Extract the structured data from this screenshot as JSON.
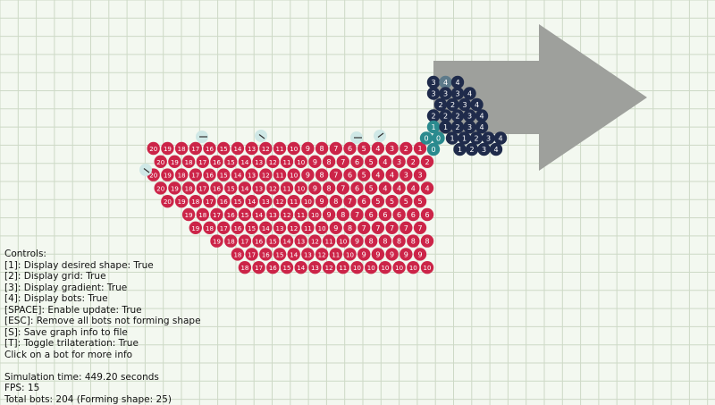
{
  "scene": {
    "colors": {
      "background": "#f3f8f0",
      "grid": "#cdd9c6",
      "shape": "#9ea09c",
      "bot_red": "#cc2448",
      "bot_navy": "#1f2b4b",
      "bot_teal": "#2a8a8e",
      "bot_slate": "#5d7a8a",
      "bot_pale": "#cfe8e6",
      "label": "#ffffff"
    },
    "shape_bots": [
      [
        {
          "n": "3",
          "c": "navy"
        },
        {
          "n": "4",
          "c": "slate"
        },
        {
          "n": "4",
          "c": "navy"
        }
      ],
      [
        {
          "n": "3",
          "c": "navy"
        },
        {
          "n": "3",
          "c": "navy"
        },
        {
          "n": "3",
          "c": "navy"
        },
        {
          "n": "4",
          "c": "navy"
        }
      ],
      [
        {
          "n": "2",
          "c": "navy"
        },
        {
          "n": "2",
          "c": "navy"
        },
        {
          "n": "3",
          "c": "navy"
        },
        {
          "n": "4",
          "c": "navy"
        }
      ],
      [
        {
          "n": "2",
          "c": "navy"
        },
        {
          "n": "2",
          "c": "navy"
        },
        {
          "n": "2",
          "c": "navy"
        },
        {
          "n": "3",
          "c": "navy"
        },
        {
          "n": "4",
          "c": "navy"
        }
      ],
      [
        {
          "n": "1",
          "c": "teal"
        },
        {
          "n": "1",
          "c": "navy"
        },
        {
          "n": "2",
          "c": "navy"
        },
        {
          "n": "3",
          "c": "navy"
        },
        {
          "n": "4",
          "c": "navy"
        }
      ],
      [
        {
          "n": "0",
          "c": "teal"
        },
        {
          "n": "0",
          "c": "teal"
        },
        {
          "n": "1",
          "c": "navy"
        },
        {
          "n": "1",
          "c": "navy"
        },
        {
          "n": "2",
          "c": "navy"
        },
        {
          "n": "3",
          "c": "navy"
        },
        {
          "n": "4",
          "c": "navy"
        }
      ],
      [
        {
          "n": "0",
          "c": "teal"
        },
        {
          "n": "1",
          "c": "navy"
        },
        {
          "n": "2",
          "c": "navy"
        },
        {
          "n": "3",
          "c": "navy"
        },
        {
          "n": "4",
          "c": "navy"
        }
      ]
    ],
    "swarm_rows": [
      [
        "20",
        "19",
        "18",
        "17",
        "16",
        "15",
        "14",
        "13",
        "12",
        "11",
        "10",
        "9",
        "8",
        "7",
        "6",
        "5",
        "4",
        "3",
        "2",
        "1"
      ],
      [
        "20",
        "19",
        "18",
        "17",
        "16",
        "15",
        "14",
        "13",
        "12",
        "11",
        "10",
        "9",
        "8",
        "7",
        "6",
        "5",
        "4",
        "3",
        "2",
        "2"
      ],
      [
        "20",
        "19",
        "18",
        "17",
        "16",
        "15",
        "14",
        "13",
        "12",
        "11",
        "10",
        "9",
        "8",
        "7",
        "6",
        "5",
        "4",
        "4",
        "3",
        "3"
      ],
      [
        "20",
        "19",
        "18",
        "17",
        "16",
        "15",
        "14",
        "13",
        "12",
        "11",
        "10",
        "9",
        "8",
        "7",
        "6",
        "5",
        "4",
        "4",
        "4",
        "4"
      ],
      [
        "20",
        "19",
        "18",
        "17",
        "16",
        "15",
        "14",
        "13",
        "12",
        "11",
        "10",
        "9",
        "8",
        "7",
        "6",
        "5",
        "5",
        "5",
        "5"
      ],
      [
        "19",
        "18",
        "17",
        "16",
        "15",
        "14",
        "13",
        "12",
        "11",
        "10",
        "9",
        "8",
        "7",
        "6",
        "6",
        "6",
        "6",
        "6"
      ],
      [
        "19",
        "18",
        "17",
        "16",
        "15",
        "14",
        "13",
        "12",
        "11",
        "10",
        "9",
        "8",
        "7",
        "7",
        "7",
        "7",
        "7"
      ],
      [
        "19",
        "18",
        "17",
        "16",
        "15",
        "14",
        "13",
        "12",
        "11",
        "10",
        "9",
        "8",
        "8",
        "8",
        "8",
        "8"
      ],
      [
        "18",
        "17",
        "16",
        "15",
        "14",
        "13",
        "12",
        "11",
        "10",
        "9",
        "9",
        "9",
        "9",
        "9"
      ],
      [
        "18",
        "17",
        "16",
        "15",
        "14",
        "13",
        "12",
        "11",
        "10",
        "10",
        "10",
        "10",
        "10",
        "10"
      ]
    ],
    "wanderers": [
      {
        "label": "wandering-bot",
        "dir": "right"
      },
      {
        "label": "wandering-bot",
        "dir": "down-right"
      },
      {
        "label": "wandering-bot",
        "dir": "right"
      },
      {
        "label": "wandering-bot",
        "dir": "up-right"
      },
      {
        "label": "wandering-bot",
        "dir": "down-right"
      }
    ]
  },
  "hud": {
    "controls_title": "Controls:",
    "c1": "[1]: Display desired shape: True",
    "c2": "[2]: Display grid: True",
    "c3": "[3]: Display gradient: True",
    "c4": "[4]: Display bots: True",
    "c5": "[SPACE]: Enable update: True",
    "c6": "[ESC]: Remove all bots not forming shape",
    "c7": "[S]: Save graph info to file",
    "c8": "[T]: Toggle trilateration: True",
    "c9": "Click on a bot for more info",
    "sim_time": "Simulation time: 449.20 seconds",
    "fps": "FPS: 15",
    "total_bots": "Total bots: 204 (Forming shape: 25)"
  }
}
